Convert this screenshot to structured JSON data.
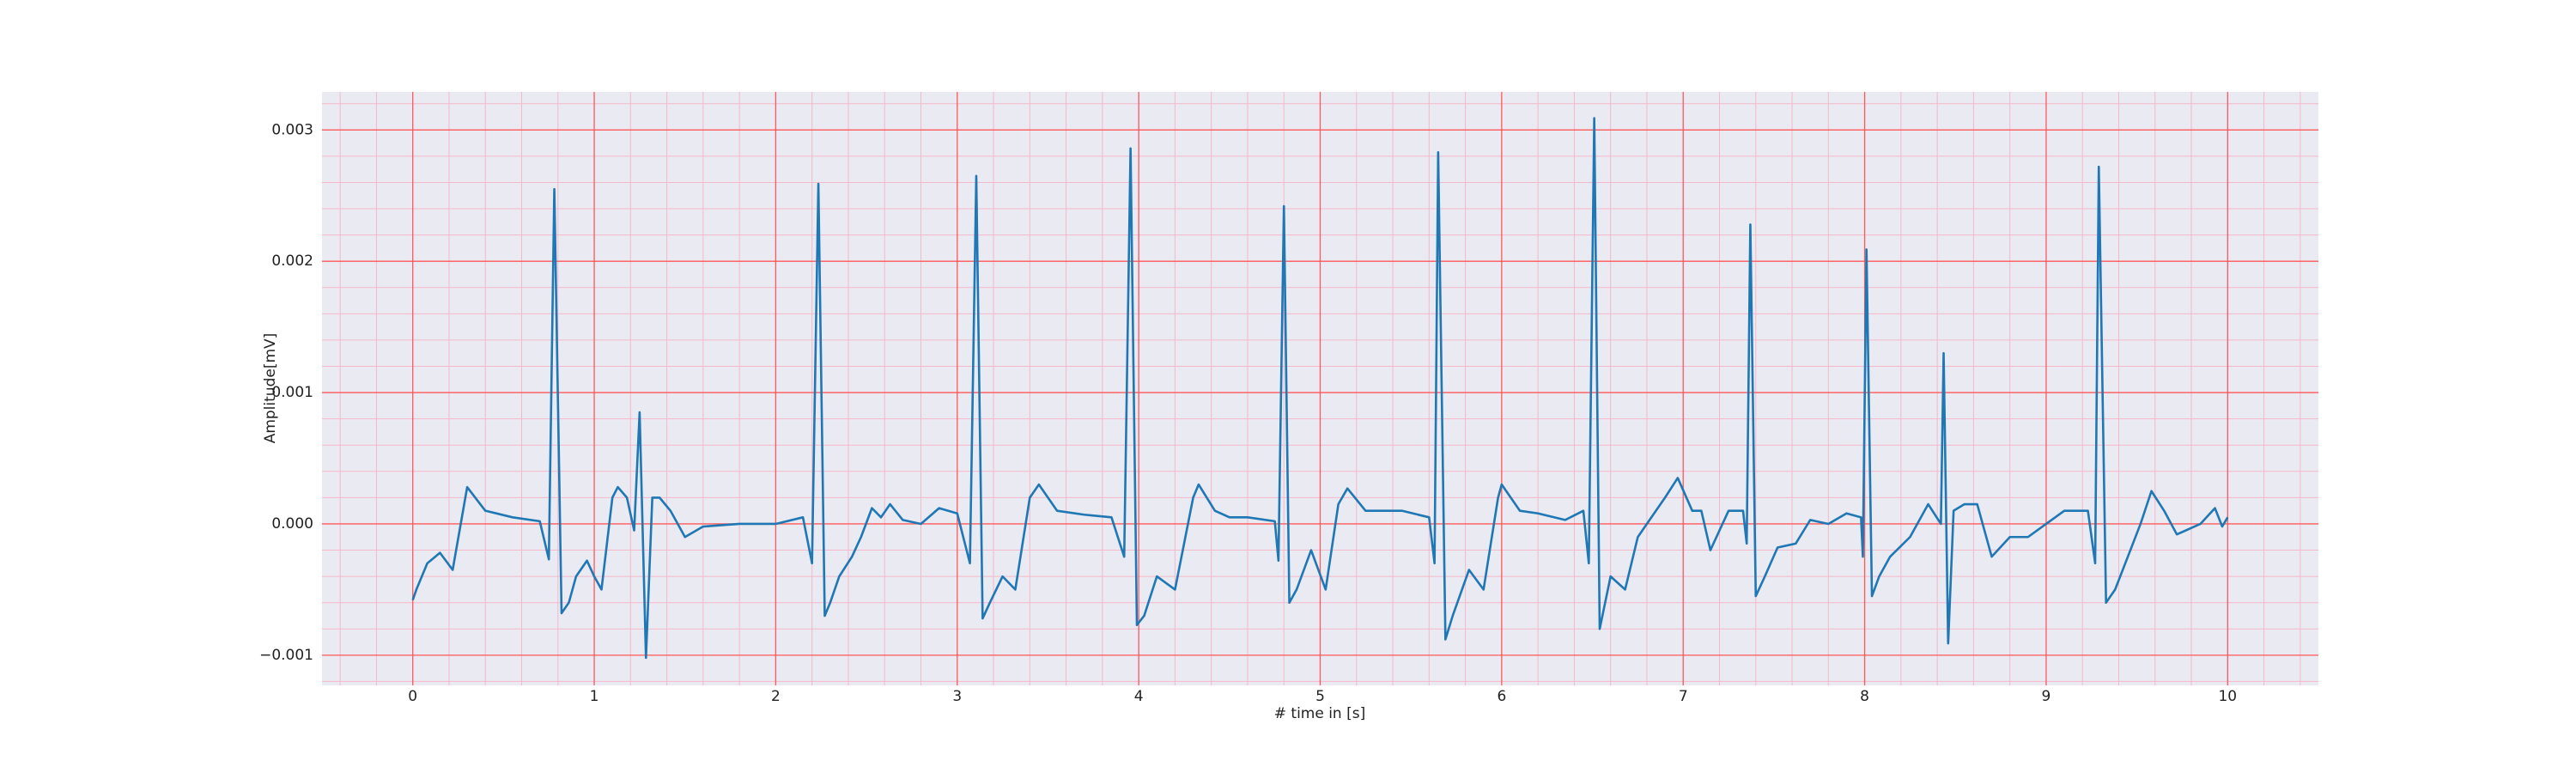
{
  "chart_data": {
    "type": "line",
    "x_label": "# time in [s]",
    "y_label": "Amplitude[mV]",
    "xlim": [
      -0.5,
      10.5
    ],
    "ylim": [
      -0.00123,
      0.00329
    ],
    "xticks": [
      0,
      1,
      2,
      3,
      4,
      5,
      6,
      7,
      8,
      9,
      10
    ],
    "yticks": [
      {
        "value": -0.001,
        "label": "−0.001"
      },
      {
        "value": 0,
        "label": "0.000"
      },
      0.001,
      0.002,
      0.003
    ],
    "grid": true,
    "minor_grid": {
      "x_step": 0.2,
      "y_step": 0.0002
    },
    "background": "#eaeaf2",
    "grid_color": "#ff5a5a",
    "minor_grid_color": "#f5b8c8",
    "color": "#1f77b4",
    "x": [
      0,
      0.02,
      0.08,
      0.15,
      0.22,
      0.3,
      0.4,
      0.55,
      0.7,
      0.75,
      0.78,
      0.82,
      0.86,
      0.9,
      0.96,
      1.0,
      1.04,
      1.1,
      1.13,
      1.18,
      1.22,
      1.25,
      1.285,
      1.32,
      1.36,
      1.42,
      1.5,
      1.6,
      1.8,
      2.0,
      2.15,
      2.2,
      2.235,
      2.27,
      2.3,
      2.35,
      2.42,
      2.47,
      2.53,
      2.58,
      2.63,
      2.7,
      2.8,
      2.9,
      3.0,
      3.07,
      3.105,
      3.14,
      3.18,
      3.25,
      3.32,
      3.4,
      3.45,
      3.55,
      3.7,
      3.85,
      3.92,
      3.955,
      3.99,
      4.03,
      4.1,
      4.2,
      4.3,
      4.33,
      4.42,
      4.5,
      4.6,
      4.75,
      4.77,
      4.8,
      4.83,
      4.87,
      4.95,
      5.03,
      5.1,
      5.15,
      5.25,
      5.35,
      5.45,
      5.6,
      5.63,
      5.65,
      5.69,
      5.73,
      5.82,
      5.9,
      5.98,
      6.0,
      6.1,
      6.2,
      6.35,
      6.45,
      6.48,
      6.51,
      6.54,
      6.6,
      6.68,
      6.75,
      6.85,
      6.9,
      6.97,
      7.05,
      7.1,
      7.15,
      7.25,
      7.33,
      7.35,
      7.37,
      7.4,
      7.45,
      7.52,
      7.62,
      7.7,
      7.8,
      7.9,
      7.98,
      7.99,
      8.01,
      8.04,
      8.08,
      8.14,
      8.25,
      8.35,
      8.42,
      8.435,
      8.46,
      8.49,
      8.55,
      8.62,
      8.7,
      8.8,
      8.9,
      9.0,
      9.1,
      9.23,
      9.27,
      9.29,
      9.33,
      9.38,
      9.45,
      9.52,
      9.58,
      9.65,
      9.72,
      9.85,
      9.93,
      9.97,
      10.0
    ],
    "values": [
      -0.00058,
      -0.0005,
      -0.0003,
      -0.00022,
      -0.00035,
      0.00028,
      0.0001,
      5e-05,
      2e-05,
      -0.00027,
      0.00255,
      -0.00068,
      -0.0006,
      -0.0004,
      -0.00028,
      -0.0004,
      -0.0005,
      0.0002,
      0.00028,
      0.0002,
      -5e-05,
      0.00085,
      -0.00102,
      0.0002,
      0.0002,
      0.0001,
      -0.0001,
      -2e-05,
      0.0,
      0.0,
      5e-05,
      -0.0003,
      0.00259,
      -0.0007,
      -0.0006,
      -0.0004,
      -0.00025,
      -0.0001,
      0.00012,
      5e-05,
      0.00015,
      3e-05,
      0.0,
      0.00012,
      8e-05,
      -0.0003,
      0.00265,
      -0.00072,
      -0.0006,
      -0.0004,
      -0.0005,
      0.0002,
      0.0003,
      0.0001,
      7e-05,
      5e-05,
      -0.00025,
      0.00286,
      -0.00077,
      -0.0007,
      -0.0004,
      -0.0005,
      0.0002,
      0.0003,
      0.0001,
      5e-05,
      5e-05,
      2e-05,
      -0.00028,
      0.00242,
      -0.0006,
      -0.0005,
      -0.0002,
      -0.0005,
      0.00015,
      0.00027,
      0.0001,
      0.0001,
      0.0001,
      5e-05,
      -0.0003,
      0.00283,
      -0.00088,
      -0.0007,
      -0.00035,
      -0.0005,
      0.0002,
      0.0003,
      0.0001,
      8e-05,
      3e-05,
      0.0001,
      -0.0003,
      0.00309,
      -0.0008,
      -0.0004,
      -0.0005,
      -0.0001,
      0.0001,
      0.0002,
      0.00035,
      0.0001,
      0.0001,
      -0.0002,
      0.0001,
      0.0001,
      -0.00015,
      0.00228,
      -0.00055,
      -0.0004,
      -0.00018,
      -0.00015,
      3e-05,
      0.0,
      8e-05,
      5e-05,
      -0.00025,
      0.00209,
      -0.00055,
      -0.0004,
      -0.00025,
      -0.0001,
      0.00015,
      0.0,
      0.0013,
      -0.00091,
      0.0001,
      0.00015,
      0.00015,
      -0.00025,
      -0.0001,
      -0.0001,
      0.0,
      0.0001,
      0.0001,
      -0.0003,
      0.00272,
      -0.0006,
      -0.0005,
      -0.00025,
      0.0,
      0.00025,
      0.0001,
      -8e-05,
      0.0,
      0.00012,
      -2e-05,
      5e-05
    ]
  }
}
